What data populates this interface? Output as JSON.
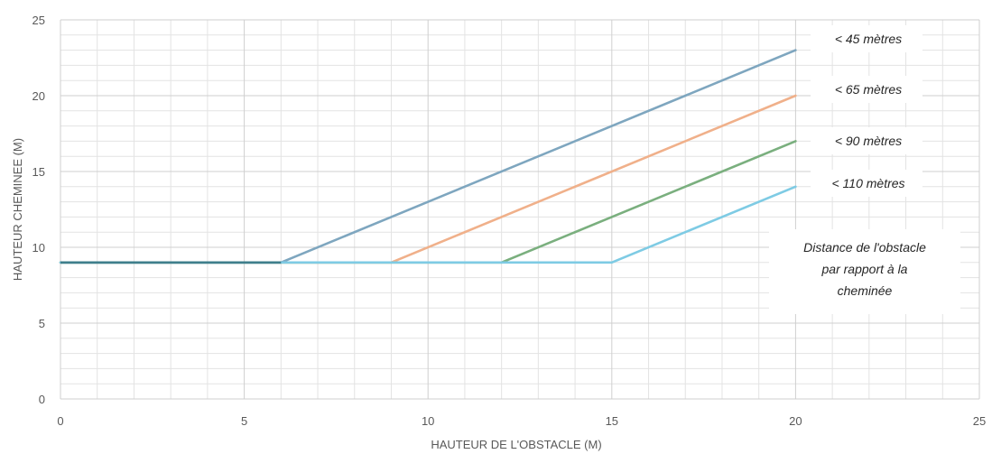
{
  "chart_data": {
    "type": "line",
    "title": "",
    "xlabel": "HAUTEUR DE L'OBSTACLE (M)",
    "ylabel": "HAUTEUR CHEMINEE (M)",
    "xlim": [
      0,
      25
    ],
    "ylim": [
      0,
      25
    ],
    "x_ticks": [
      0,
      5,
      10,
      15,
      20,
      25
    ],
    "y_ticks": [
      0,
      5,
      10,
      15,
      20,
      25
    ],
    "grid": true,
    "series": [
      {
        "name": "< 45 mètres",
        "color": "#7ea6bf",
        "points": [
          [
            0,
            9
          ],
          [
            6,
            9
          ],
          [
            20,
            23
          ]
        ]
      },
      {
        "name": "< 65 mètres",
        "color": "#f0b08a",
        "points": [
          [
            0,
            9
          ],
          [
            9,
            9
          ],
          [
            20,
            20
          ]
        ]
      },
      {
        "name": "< 90 mètres",
        "color": "#7aaf7e",
        "points": [
          [
            0,
            9
          ],
          [
            12,
            9
          ],
          [
            20,
            17
          ]
        ]
      },
      {
        "name": "< 110 mètres",
        "color": "#7ecbe4",
        "points": [
          [
            0,
            9
          ],
          [
            15,
            9
          ],
          [
            20,
            14
          ]
        ]
      }
    ],
    "annotation": [
      "Distance de l'obstacle",
      "par rapport à  la",
      "cheminée"
    ]
  }
}
